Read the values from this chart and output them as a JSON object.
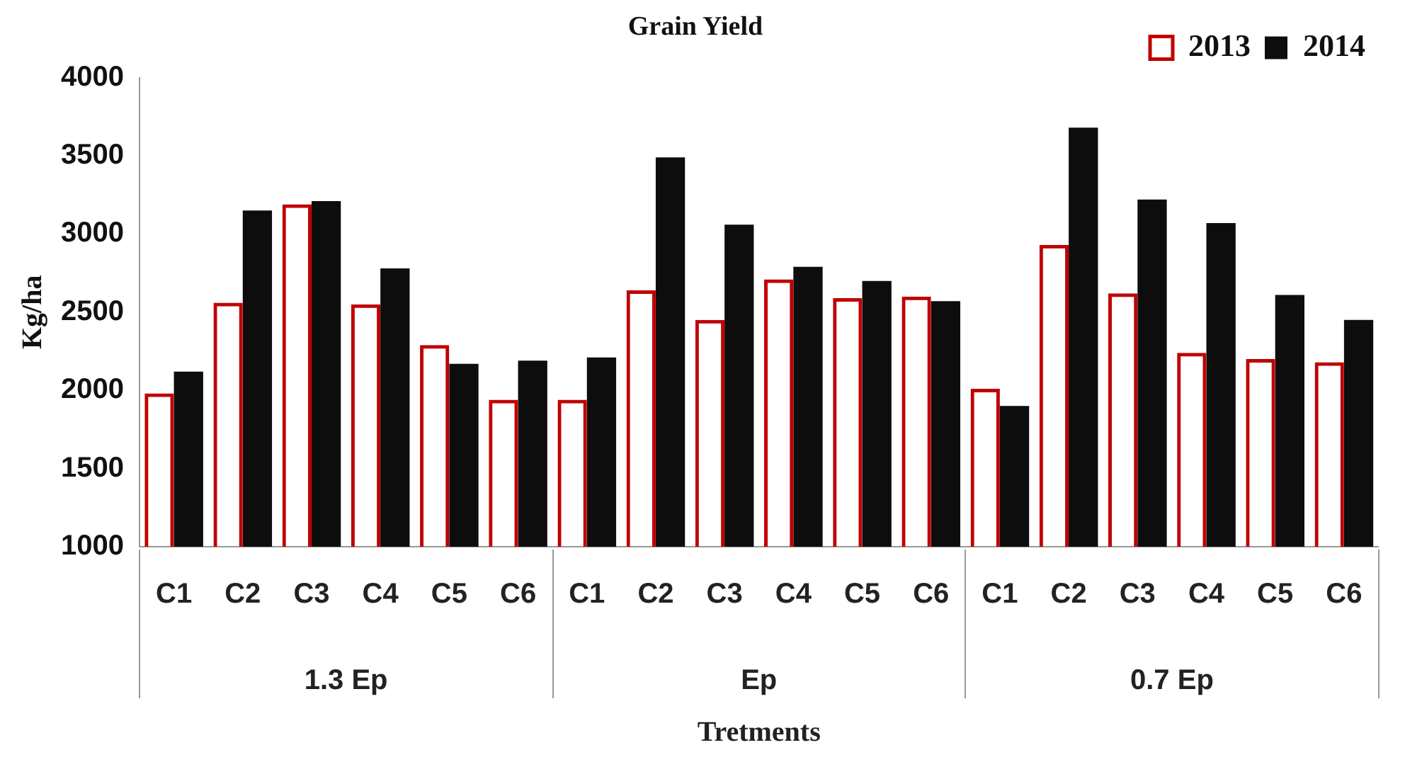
{
  "chart_data": {
    "type": "bar",
    "title": "Grain Yield",
    "xlabel": "Tretments",
    "ylabel": "Kg/ha",
    "categories": [
      "C1",
      "C2",
      "C3",
      "C4",
      "C5",
      "C6",
      "C1",
      "C2",
      "C3",
      "C4",
      "C5",
      "C6",
      "C1",
      "C2",
      "C3",
      "C4",
      "C5",
      "C6"
    ],
    "annotations": [
      "1.3 Ep",
      "Ep",
      "0.7 Ep"
    ],
    "series": [
      {
        "name": "2013",
        "color": "#c00000",
        "values": [
          1980,
          2560,
          3190,
          2550,
          2290,
          1940,
          1940,
          2640,
          2450,
          2710,
          2590,
          2600,
          2010,
          2930,
          2620,
          2240,
          2200,
          2180
        ]
      },
      {
        "name": "2014",
        "color": "#0d0d0d",
        "values": [
          2120,
          3150,
          3210,
          2780,
          2170,
          2190,
          2210,
          3490,
          3060,
          2790,
          2700,
          2570,
          1900,
          3680,
          3220,
          3070,
          2610,
          2450
        ]
      }
    ],
    "ylim": [
      1000,
      4000
    ],
    "yticks": [
      1000,
      1500,
      2000,
      2500,
      3000,
      3500,
      4000
    ],
    "grid": false,
    "legend": "top right"
  }
}
